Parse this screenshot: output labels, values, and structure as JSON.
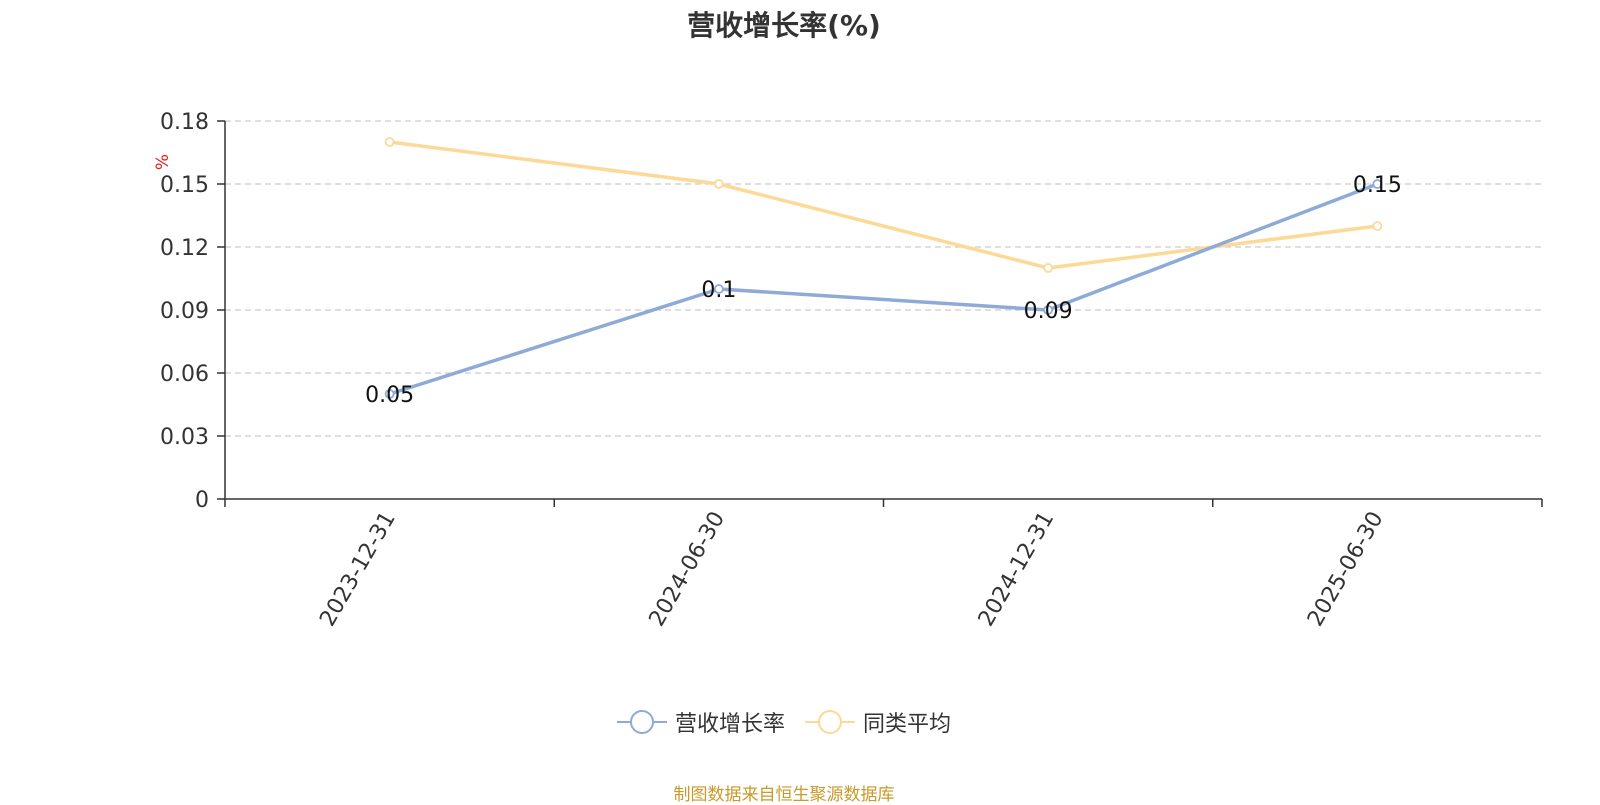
{
  "title": "营收增长率(%)",
  "source_note": "制图数据来自恒生聚源数据库",
  "colors": {
    "series_1": "#8eaad6",
    "series_2": "#fcd997",
    "axis_unit": "#e02020",
    "grid": "#cccccc",
    "axis": "#333333",
    "source": "#c79a2a"
  },
  "legend": {
    "position": "bottom-center",
    "items": [
      {
        "label": "营收增长率",
        "icon": "circle-line-icon"
      },
      {
        "label": "同类平均",
        "icon": "circle-line-icon"
      }
    ]
  },
  "chart_data": {
    "type": "line",
    "title": "营收增长率(%)",
    "ylabel": "%",
    "xlabel": "",
    "categories": [
      "2023-12-31",
      "2024-06-30",
      "2024-12-31",
      "2025-06-30"
    ],
    "ylim": [
      0,
      0.18
    ],
    "yticks": [
      "0",
      "0.03",
      "0.06",
      "0.09",
      "0.12",
      "0.15",
      "0.18"
    ],
    "grid": true,
    "series": [
      {
        "name": "营收增长率",
        "values": [
          0.05,
          0.1,
          0.09,
          0.15
        ],
        "labels": [
          "0.05",
          "0.1",
          "0.09",
          "0.15"
        ],
        "show_labels": true
      },
      {
        "name": "同类平均",
        "values": [
          0.17,
          0.15,
          0.11,
          0.13
        ],
        "show_labels": false
      }
    ]
  }
}
